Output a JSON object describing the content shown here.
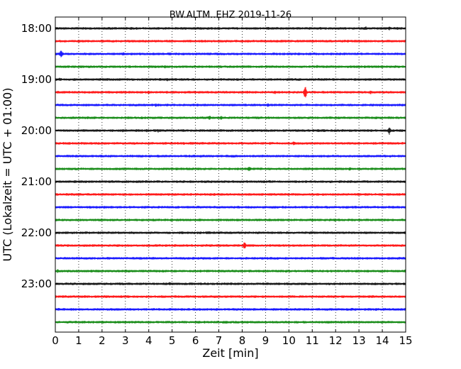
{
  "chart_data": {
    "type": "line",
    "title": "BW.ALTM..EHZ 2019-11-26",
    "xlabel": "Zeit  [min]",
    "ylabel": "UTC (Lokalzeit = UTC + 01:00)",
    "xlim": [
      0,
      15
    ],
    "x_ticks": [
      "0",
      "1",
      "2",
      "3",
      "4",
      "5",
      "6",
      "7",
      "8",
      "9",
      "10",
      "11",
      "12",
      "13",
      "14",
      "15"
    ],
    "y_ticks": [
      "18:00",
      "19:00",
      "20:00",
      "21:00",
      "22:00",
      "23:00"
    ],
    "grid": "vertical dotted",
    "trace_interval_minutes": 15,
    "trace_colors": [
      "#000000",
      "#ff0000",
      "#0000ff",
      "#008000"
    ],
    "traces": [
      {
        "start": "18:00",
        "color": "#000000",
        "events": [
          {
            "x": 13.3,
            "amp": 3
          },
          {
            "x": 14.3,
            "amp": 3
          }
        ]
      },
      {
        "start": "18:15",
        "color": "#ff0000",
        "events": []
      },
      {
        "start": "18:30",
        "color": "#0000ff",
        "events": [
          {
            "x": 0.25,
            "amp": 7
          },
          {
            "x": 2.9,
            "amp": 3
          }
        ]
      },
      {
        "start": "18:45",
        "color": "#008000",
        "events": [
          {
            "x": 4.7,
            "amp": 3
          },
          {
            "x": 11.2,
            "amp": 3
          }
        ]
      },
      {
        "start": "19:00",
        "color": "#000000",
        "events": [
          {
            "x": 0.2,
            "amp": 3
          },
          {
            "x": 4.8,
            "amp": 3
          }
        ]
      },
      {
        "start": "19:15",
        "color": "#ff0000",
        "events": [
          {
            "x": 4.0,
            "amp": 3
          },
          {
            "x": 9.4,
            "amp": 3
          },
          {
            "x": 10.7,
            "amp": 10
          },
          {
            "x": 13.5,
            "amp": 3
          }
        ]
      },
      {
        "start": "19:30",
        "color": "#0000ff",
        "events": [
          {
            "x": 4.3,
            "amp": 3
          },
          {
            "x": 9.1,
            "amp": 3
          }
        ]
      },
      {
        "start": "19:45",
        "color": "#008000",
        "events": [
          {
            "x": 6.6,
            "amp": 4
          },
          {
            "x": 7.1,
            "amp": 3
          }
        ]
      },
      {
        "start": "20:00",
        "color": "#000000",
        "events": [
          {
            "x": 2.9,
            "amp": 3
          },
          {
            "x": 3.9,
            "amp": 3
          },
          {
            "x": 4.4,
            "amp": 3
          },
          {
            "x": 11.5,
            "amp": 3
          },
          {
            "x": 14.3,
            "amp": 6
          }
        ]
      },
      {
        "start": "20:15",
        "color": "#ff0000",
        "events": [
          {
            "x": 10.2,
            "amp": 3
          }
        ]
      },
      {
        "start": "20:30",
        "color": "#0000ff",
        "events": [
          {
            "x": 1.5,
            "amp": 2
          }
        ]
      },
      {
        "start": "20:45",
        "color": "#008000",
        "events": [
          {
            "x": 8.3,
            "amp": 4
          },
          {
            "x": 12.6,
            "amp": 3
          }
        ]
      },
      {
        "start": "21:00",
        "color": "#000000",
        "events": []
      },
      {
        "start": "21:15",
        "color": "#ff0000",
        "events": []
      },
      {
        "start": "21:30",
        "color": "#0000ff",
        "events": []
      },
      {
        "start": "21:45",
        "color": "#008000",
        "events": []
      },
      {
        "start": "22:00",
        "color": "#000000",
        "events": []
      },
      {
        "start": "22:15",
        "color": "#ff0000",
        "events": [
          {
            "x": 8.1,
            "amp": 6
          }
        ]
      },
      {
        "start": "22:30",
        "color": "#0000ff",
        "events": []
      },
      {
        "start": "22:45",
        "color": "#008000",
        "events": [
          {
            "x": 0.1,
            "amp": 3
          }
        ]
      },
      {
        "start": "23:00",
        "color": "#000000",
        "events": [
          {
            "x": 4.9,
            "amp": 3
          }
        ]
      },
      {
        "start": "23:15",
        "color": "#ff0000",
        "events": []
      },
      {
        "start": "23:30",
        "color": "#0000ff",
        "events": []
      },
      {
        "start": "23:45",
        "color": "#008000",
        "events": []
      }
    ]
  }
}
